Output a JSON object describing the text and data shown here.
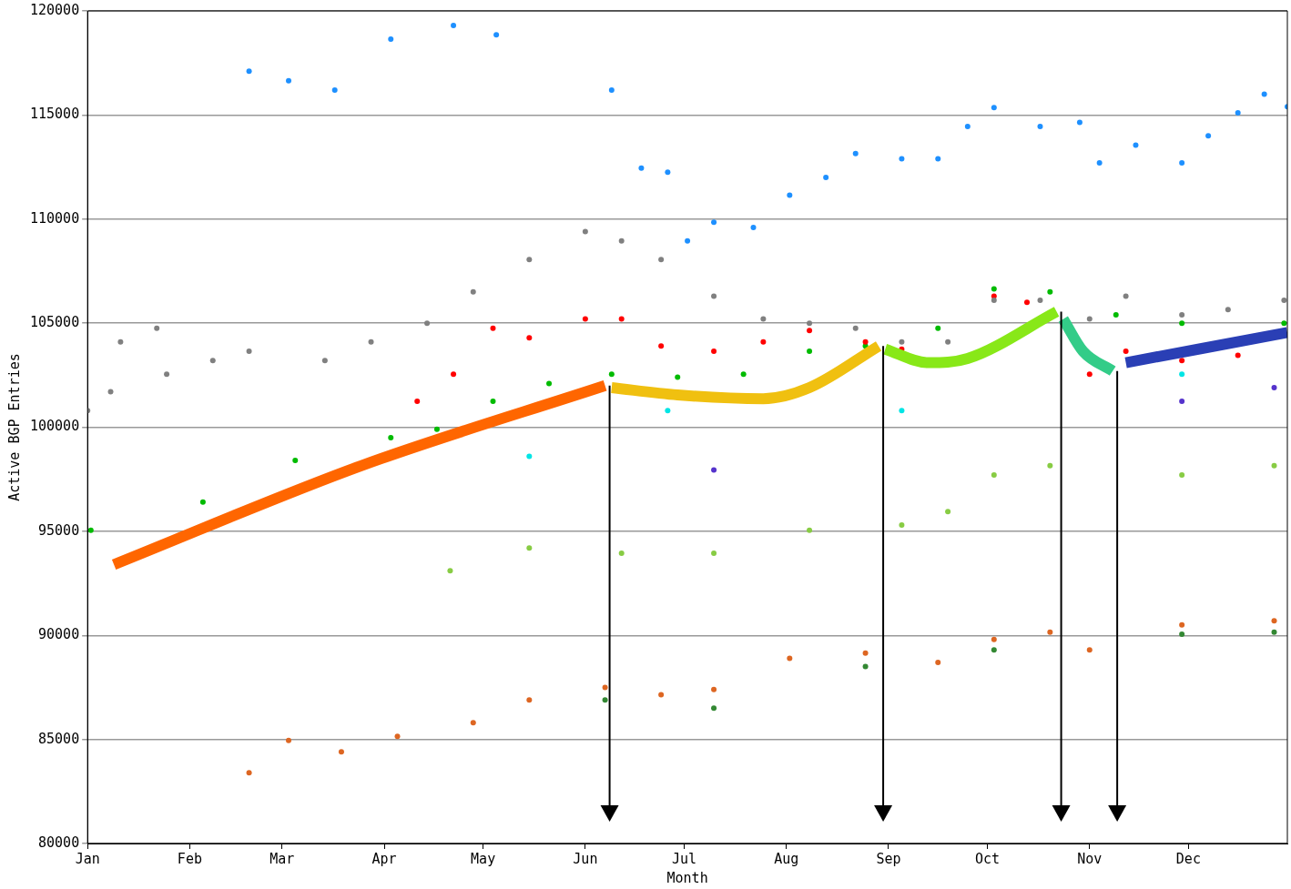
{
  "chart_data": {
    "type": "scatter",
    "xlabel": "Month",
    "ylabel": "Active BGP Entries",
    "xlim": [
      "--01-01",
      "--12-31"
    ],
    "xticks": [
      {
        "value": "--01-01",
        "label": "Jan"
      },
      {
        "value": "--02-01",
        "label": "Feb"
      },
      {
        "value": "--03-01",
        "label": "Mar"
      },
      {
        "value": "--04-01",
        "label": "Apr"
      },
      {
        "value": "--05-01",
        "label": "May"
      },
      {
        "value": "--06-01",
        "label": "Jun"
      },
      {
        "value": "--07-01",
        "label": "Jul"
      },
      {
        "value": "--08-01",
        "label": "Aug"
      },
      {
        "value": "--09-01",
        "label": "Sep"
      },
      {
        "value": "--10-01",
        "label": "Oct"
      },
      {
        "value": "--11-01",
        "label": "Nov"
      },
      {
        "value": "--12-01",
        "label": "Dec"
      }
    ],
    "ylim": [
      80000,
      120000
    ],
    "yticks": [
      80000,
      85000,
      90000,
      95000,
      100000,
      105000,
      110000,
      115000,
      120000
    ],
    "grid": "y",
    "marker": "circle",
    "series": [
      {
        "color": "#808080",
        "x": [
          "--01-01",
          "--01-08",
          "--01-11",
          "--01-22",
          "--01-25",
          "--02-08",
          "--02-19",
          "--03-14",
          "--03-28",
          "--04-14",
          "--04-28",
          "--05-15",
          "--06-01",
          "--06-12",
          "--06-24",
          "--07-10",
          "--07-25",
          "--08-08",
          "--08-22",
          "--09-05",
          "--09-19",
          "--10-03",
          "--10-17",
          "--11-01",
          "--11-12",
          "--11-29",
          "--12-13",
          "--12-30"
        ],
        "values": [
          100800,
          101700,
          104100,
          104750,
          102550,
          103200,
          103650,
          103200,
          104100,
          105000,
          106500,
          108050,
          109400,
          108950,
          108050,
          106300,
          105200,
          105000,
          104750,
          104100,
          104100,
          106100,
          106100,
          105200,
          106300,
          105400,
          105650,
          106100
        ]
      },
      {
        "color": "#ff0000",
        "x": [
          "--04-11",
          "--04-22",
          "--05-04",
          "--05-15",
          "--06-01",
          "--06-12",
          "--06-24",
          "--07-10",
          "--07-25",
          "--08-08",
          "--08-25",
          "--09-05",
          "--10-03",
          "--10-13",
          "--11-01",
          "--11-12",
          "--11-29",
          "--12-16"
        ],
        "values": [
          101250,
          102550,
          104750,
          104300,
          105200,
          105200,
          103900,
          103650,
          104100,
          104650,
          104100,
          103750,
          106300,
          106000,
          102550,
          103650,
          103200,
          103450
        ]
      },
      {
        "color": "#00bb00",
        "x": [
          "--01-02",
          "--02-05",
          "--03-05",
          "--04-03",
          "--04-17",
          "--05-04",
          "--05-21",
          "--06-09",
          "--06-29",
          "--07-19",
          "--08-08",
          "--08-25",
          "--09-16",
          "--10-03",
          "--10-20",
          "--11-09",
          "--11-29",
          "--12-30"
        ],
        "values": [
          95050,
          96400,
          98400,
          99500,
          99900,
          101250,
          102100,
          102550,
          102400,
          102550,
          103650,
          103900,
          104750,
          106650,
          106500,
          105400,
          105000,
          105000
        ]
      },
      {
        "color": "#1e90ff",
        "x": [
          "--02-19",
          "--03-03",
          "--03-17",
          "--04-03",
          "--04-22",
          "--05-05",
          "--06-09",
          "--06-18",
          "--06-26",
          "--07-02",
          "--07-10",
          "--07-22",
          "--08-02",
          "--08-13",
          "--08-22",
          "--09-05",
          "--09-16",
          "--09-25",
          "--10-03",
          "--10-17",
          "--10-29",
          "--11-04",
          "--11-15",
          "--11-29",
          "--12-07",
          "--12-16",
          "--12-24",
          "--12-31"
        ],
        "values": [
          117100,
          116650,
          116200,
          118650,
          119300,
          118850,
          116200,
          112450,
          112250,
          108950,
          109850,
          109600,
          111150,
          112000,
          113150,
          112900,
          112900,
          114450,
          115350,
          114450,
          114650,
          112700,
          113550,
          112700,
          114000,
          115100,
          116000,
          115400
        ]
      },
      {
        "color": "#88cc44",
        "x": [
          "--04-21",
          "--05-15",
          "--06-12",
          "--07-10",
          "--08-08",
          "--09-05",
          "--09-19",
          "--10-03",
          "--10-20",
          "--11-29",
          "--12-27"
        ],
        "values": [
          93100,
          94200,
          93950,
          93950,
          95050,
          95300,
          95950,
          97700,
          98150,
          97700,
          98150
        ]
      },
      {
        "color": "#dd6622",
        "x": [
          "--02-19",
          "--03-03",
          "--03-19",
          "--04-05",
          "--04-28",
          "--05-15",
          "--06-07",
          "--06-24",
          "--07-10",
          "--08-02",
          "--08-25",
          "--09-16",
          "--10-03",
          "--10-20",
          "--11-01",
          "--11-29",
          "--12-27"
        ],
        "values": [
          83400,
          84950,
          84400,
          85150,
          85800,
          86900,
          87500,
          87150,
          87400,
          88900,
          89150,
          88700,
          89800,
          90150,
          89300,
          90500,
          90700
        ]
      },
      {
        "color": "#338833",
        "x": [
          "--06-07",
          "--07-10",
          "--08-25",
          "--10-03",
          "--11-29",
          "--12-27"
        ],
        "values": [
          86900,
          86500,
          88500,
          89300,
          90050,
          90150
        ]
      },
      {
        "color": "#00e5e5",
        "x": [
          "--05-15",
          "--06-26",
          "--09-05",
          "--11-29"
        ],
        "values": [
          98600,
          100800,
          100800,
          102550
        ]
      },
      {
        "color": "#5533cc",
        "x": [
          "--07-10",
          "--11-29",
          "--12-27"
        ],
        "values": [
          97950,
          101250,
          101900
        ]
      },
      {
        "type": "line",
        "marker": "none",
        "color": "#ff6600",
        "x": [
          "--01-09",
          "--03-25",
          "--06-07"
        ],
        "values": [
          93400,
          98150,
          102000
        ]
      },
      {
        "type": "line",
        "marker": "none",
        "color": "#f0c010",
        "x": [
          "--06-09",
          "--06-29",
          "--07-25",
          "--08-08",
          "--08-29"
        ],
        "values": [
          101900,
          101550,
          101370,
          101900,
          103900
        ]
      },
      {
        "type": "line",
        "marker": "none",
        "color": "#88e818",
        "x": [
          "--08-31",
          "--09-13",
          "--09-25",
          "--10-22"
        ],
        "values": [
          103750,
          103100,
          103300,
          105550
        ]
      },
      {
        "type": "line",
        "marker": "none",
        "color": "#33cc88",
        "x": [
          "--10-24",
          "--10-30",
          "--11-08"
        ],
        "values": [
          105200,
          103650,
          102700
        ]
      },
      {
        "type": "line",
        "marker": "none",
        "color": "#2a3fb5",
        "x": [
          "--11-12",
          "--12-31"
        ],
        "values": [
          103100,
          104550
        ]
      }
    ]
  }
}
